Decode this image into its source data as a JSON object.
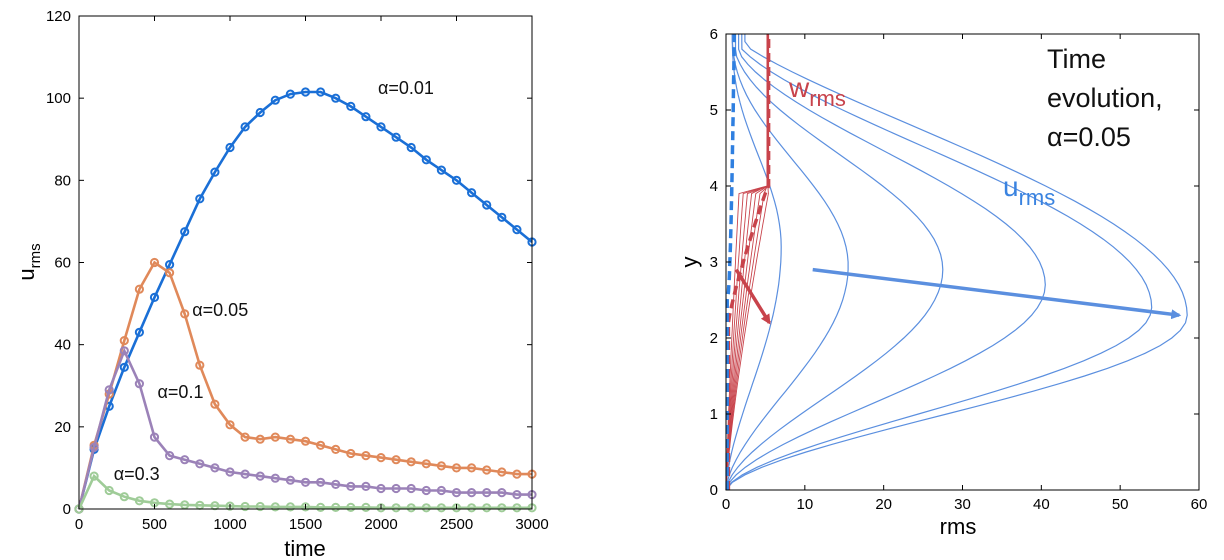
{
  "colors": {
    "blue": "#1a6fd6",
    "orange": "#e0895a",
    "purple": "#9b82b8",
    "green": "#9fcc98",
    "light_blue": "#5b8fdf",
    "red": "#c8434b",
    "dash_blue": "#2f7fe0"
  },
  "chart_data": [
    {
      "type": "line",
      "xlabel": "time",
      "ylabel_main": "u",
      "ylabel_sub": "rms",
      "xlim": [
        0,
        3000
      ],
      "ylim": [
        0,
        120
      ],
      "xticks": [
        "0",
        "500",
        "1000",
        "1500",
        "2000",
        "2500",
        "3000"
      ],
      "yticks": [
        "0",
        "20",
        "40",
        "60",
        "80",
        "100",
        "120"
      ],
      "grid": false,
      "legend": "inline labels",
      "series": [
        {
          "name": "α=0.01",
          "color": "#1a6fd6",
          "x": [
            0,
            100,
            200,
            300,
            400,
            500,
            600,
            700,
            800,
            900,
            1000,
            1100,
            1200,
            1300,
            1400,
            1500,
            1600,
            1700,
            1800,
            1900,
            2000,
            2100,
            2200,
            2300,
            2400,
            2500,
            2600,
            2700,
            2800,
            2900,
            3000
          ],
          "y": [
            0,
            14.5,
            25,
            34.5,
            43,
            51.5,
            59.5,
            67.5,
            75.5,
            82,
            88,
            93,
            96.5,
            99.5,
            101,
            101.5,
            101.5,
            100,
            98,
            95.5,
            93,
            90.5,
            88,
            85,
            82.5,
            80,
            77,
            74,
            71,
            68,
            65
          ]
        },
        {
          "name": "α=0.05",
          "color": "#e0895a",
          "x": [
            0,
            100,
            200,
            300,
            400,
            500,
            600,
            700,
            800,
            900,
            1000,
            1100,
            1200,
            1300,
            1400,
            1500,
            1600,
            1700,
            1800,
            1900,
            2000,
            2100,
            2200,
            2300,
            2400,
            2500,
            2600,
            2700,
            2800,
            2900,
            3000
          ],
          "y": [
            0,
            15.5,
            28,
            41,
            53.5,
            60,
            57.5,
            47.5,
            35,
            25.5,
            20.5,
            17.5,
            17,
            17.5,
            17,
            16.5,
            15.5,
            14.5,
            13.5,
            13,
            12.5,
            12,
            11.5,
            11,
            10.5,
            10,
            10,
            9.5,
            9,
            8.5,
            8.5
          ]
        },
        {
          "name": "α=0.1",
          "color": "#9b82b8",
          "x": [
            0,
            100,
            200,
            300,
            400,
            500,
            600,
            700,
            800,
            900,
            1000,
            1100,
            1200,
            1300,
            1400,
            1500,
            1600,
            1700,
            1800,
            1900,
            2000,
            2100,
            2200,
            2300,
            2400,
            2500,
            2600,
            2700,
            2800,
            2900,
            3000
          ],
          "y": [
            0,
            15,
            29,
            38.5,
            30.5,
            17.5,
            13,
            12,
            11,
            10,
            9,
            8.5,
            8,
            7.5,
            7,
            6.5,
            6.5,
            6,
            5.5,
            5.5,
            5,
            5,
            5,
            4.5,
            4.5,
            4,
            4,
            4,
            4,
            3.5,
            3.5
          ]
        },
        {
          "name": "α=0.3",
          "color": "#9fcc98",
          "x": [
            0,
            100,
            200,
            300,
            400,
            500,
            600,
            700,
            800,
            900,
            1000,
            1100,
            1200,
            1300,
            1400,
            1500,
            1600,
            1700,
            1800,
            1900,
            2000,
            2100,
            2200,
            2300,
            2400,
            2500,
            2600,
            2700,
            2800,
            2900,
            3000
          ],
          "y": [
            0,
            8,
            4.5,
            3,
            2,
            1.5,
            1.2,
            1,
            0.9,
            0.8,
            0.7,
            0.6,
            0.6,
            0.5,
            0.5,
            0.5,
            0.4,
            0.4,
            0.4,
            0.4,
            0.3,
            0.3,
            0.3,
            0.3,
            0.3,
            0.3,
            0.3,
            0.3,
            0.3,
            0.3,
            0.3
          ]
        }
      ],
      "annotations": [
        {
          "text": "α=0.01",
          "x": 1980,
          "y": 101
        },
        {
          "text": "α=0.05",
          "x": 750,
          "y": 47
        },
        {
          "text": "α=0.1",
          "x": 520,
          "y": 27
        },
        {
          "text": "α=0.3",
          "x": 230,
          "y": 7
        }
      ]
    },
    {
      "type": "line",
      "xlabel": "rms",
      "ylabel": "y",
      "xlim": [
        0,
        60
      ],
      "ylim": [
        0,
        6
      ],
      "xticks": [
        "0",
        "10",
        "20",
        "30",
        "40",
        "50",
        "60"
      ],
      "yticks": [
        "0",
        "1",
        "2",
        "3",
        "4",
        "5",
        "6"
      ],
      "grid": false,
      "u_profiles": {
        "color": "#5b8fdf",
        "peaks": [
          7,
          15.5,
          27.5,
          40.5,
          54,
          58.5
        ],
        "peak_y": [
          3.2,
          2.95,
          2.9,
          2.7,
          2.4,
          2.3
        ],
        "top_spread": [
          0.4,
          0.8,
          1.2,
          1.6,
          2.0,
          2.4
        ]
      },
      "w_profiles": {
        "color": "#c8434b",
        "count": 8
      },
      "u_label_main": "u",
      "u_label_sub": "rms",
      "w_label_main": "w",
      "w_label_sub": "rms",
      "annotation_lines": [
        "Time",
        "evolution,",
        "α=0.05"
      ],
      "arrows": [
        {
          "color": "#5b8fdf",
          "from": [
            11,
            2.9
          ],
          "to": [
            57.5,
            2.3
          ]
        },
        {
          "color": "#c8434b",
          "from": [
            1.3,
            2.9
          ],
          "to": [
            5.5,
            2.2
          ]
        }
      ]
    }
  ]
}
